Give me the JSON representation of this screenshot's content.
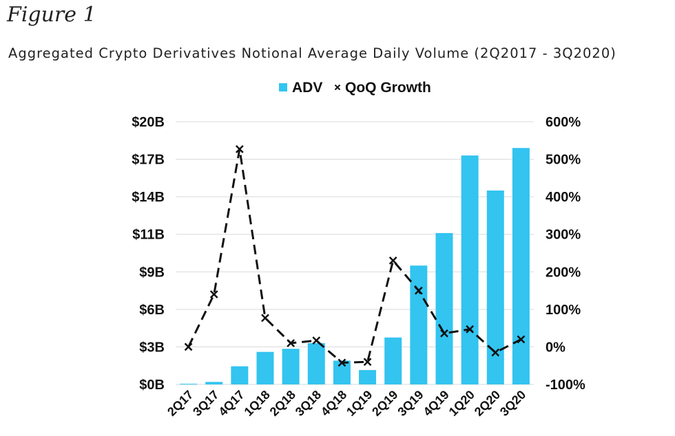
{
  "figure_label": "Figure 1",
  "title": "Aggregated Crypto Derivatives Notional Average Daily Volume (2Q2017 - 3Q2020)",
  "colors": {
    "bar": "#33C4F0",
    "line": "#111111",
    "grid": "#D9D9D9",
    "text": "#111111"
  },
  "chart_data": {
    "type": "bar",
    "title": "Aggregated Crypto Derivatives Notional Average Daily Volume (2Q2017 - 3Q2020)",
    "categories": [
      "2Q17",
      "3Q17",
      "4Q17",
      "1Q18",
      "2Q18",
      "3Q18",
      "4Q18",
      "1Q19",
      "2Q19",
      "3Q19",
      "4Q19",
      "1Q20",
      "2Q20",
      "3Q20"
    ],
    "legend": {
      "position": "top-center",
      "entries": [
        "ADV",
        "QoQ Growth"
      ]
    },
    "grid": true,
    "series": [
      {
        "name": "ADV",
        "type": "bar",
        "axis": "left",
        "values": [
          0.05,
          0.2,
          1.45,
          2.6,
          2.85,
          3.3,
          1.9,
          1.15,
          3.75,
          9.5,
          12.1,
          18.3,
          15.5,
          18.9
        ]
      },
      {
        "name": "QoQ Growth",
        "type": "line",
        "axis": "right",
        "style": "dashed",
        "marker": "x",
        "values": [
          0,
          140,
          527,
          77,
          10,
          17,
          -42,
          -40,
          230,
          150,
          36,
          47,
          -15,
          20
        ]
      }
    ],
    "y_left": {
      "ylim": [
        0,
        21
      ],
      "ticks": [
        0,
        3,
        6,
        9,
        11,
        14,
        17,
        20
      ],
      "tick_labels": [
        "$0B",
        "$3B",
        "$6B",
        "$9B",
        "$11B",
        "$14B",
        "$17B",
        "$20B"
      ]
    },
    "y_right": {
      "ylim": [
        -100,
        600
      ],
      "ticks": [
        -100,
        0,
        100,
        200,
        300,
        400,
        500,
        600
      ],
      "tick_labels": [
        "-100%",
        "0%",
        "100%",
        "200%",
        "300%",
        "400%",
        "500%",
        "600%"
      ]
    }
  }
}
